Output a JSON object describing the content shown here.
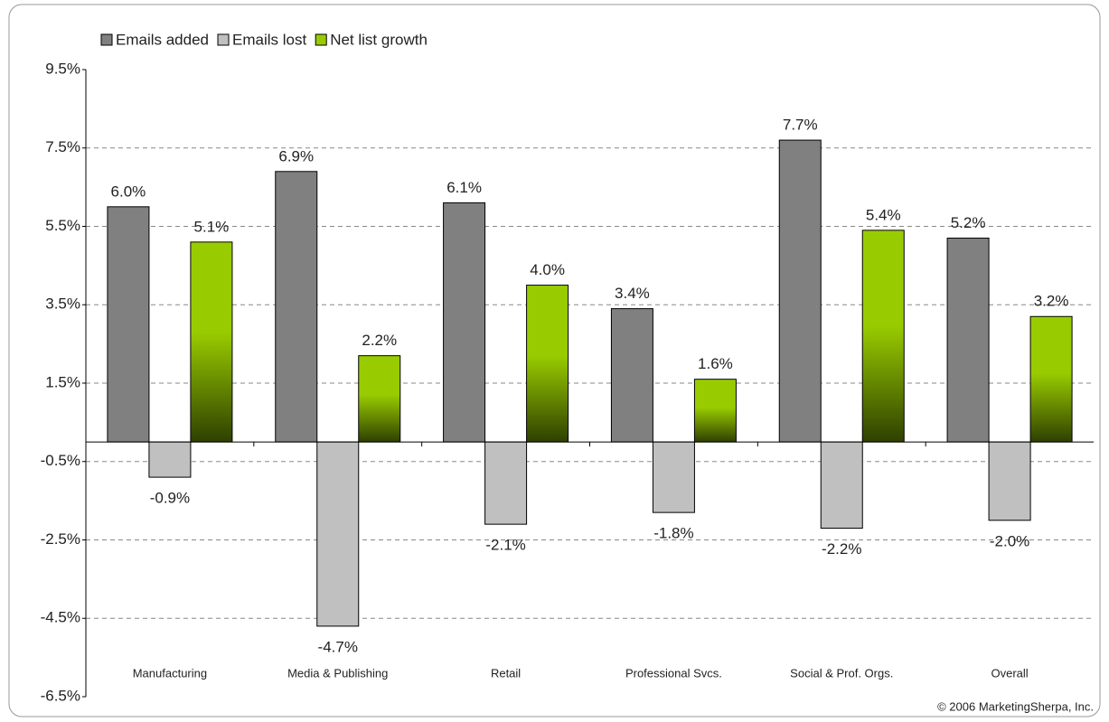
{
  "chart_data": {
    "type": "bar",
    "categories": [
      "Manufacturing",
      "Media & Publishing",
      "Retail",
      "Professional Svcs.",
      "Social & Prof. Orgs.",
      "Overall"
    ],
    "series": [
      {
        "name": "Emails added",
        "color": "#808080",
        "values": [
          6.0,
          6.9,
          6.1,
          3.4,
          7.7,
          5.2
        ],
        "value_labels": [
          "6.0%",
          "6.9%",
          "6.1%",
          "3.4%",
          "7.7%",
          "5.2%"
        ]
      },
      {
        "name": "Emails lost",
        "color": "#c0c0c0",
        "values": [
          -0.9,
          -4.7,
          -2.1,
          -1.8,
          -2.2,
          -2.0
        ],
        "value_labels": [
          "-0.9%",
          "-4.7%",
          "-2.1%",
          "-1.8%",
          "-2.2%",
          "-2.0%"
        ]
      },
      {
        "name": "Net list growth",
        "color": "#99cc00",
        "values": [
          5.1,
          2.2,
          4.0,
          1.6,
          5.4,
          3.2
        ],
        "value_labels": [
          "5.1%",
          "2.2%",
          "4.0%",
          "1.6%",
          "5.4%",
          "3.2%"
        ]
      }
    ],
    "ylim": [
      -6.5,
      9.5
    ],
    "yticks": [
      {
        "value": -6.5,
        "label": "-6.5%"
      },
      {
        "value": -4.5,
        "label": "-4.5%"
      },
      {
        "value": -2.5,
        "label": "-2.5%"
      },
      {
        "value": -0.5,
        "label": "-0.5%"
      },
      {
        "value": 1.5,
        "label": "1.5%"
      },
      {
        "value": 3.5,
        "label": "3.5%"
      },
      {
        "value": 5.5,
        "label": "5.5%"
      },
      {
        "value": 7.5,
        "label": "7.5%"
      },
      {
        "value": 9.5,
        "label": "9.5%"
      }
    ],
    "grid": true,
    "legend": "top-left",
    "source": "© 2006 MarketingSherpa, Inc."
  }
}
